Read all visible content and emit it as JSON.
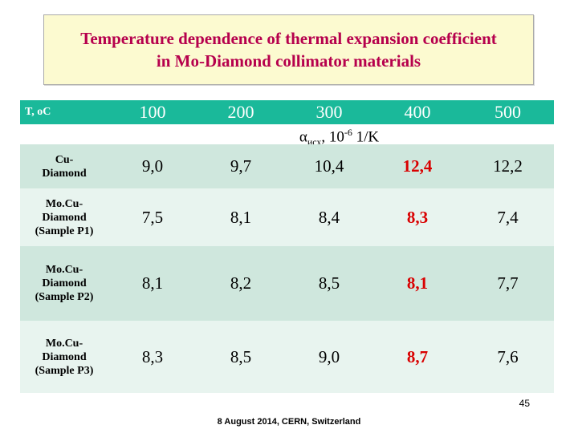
{
  "title": {
    "line1": "Temperature dependence of thermal expansion coefficient",
    "line2": "in Mo-Diamond collimator materials"
  },
  "table": {
    "header_label": "T, oC",
    "temperatures": [
      "100",
      "200",
      "300",
      "400",
      "500"
    ],
    "coefficient_label": {
      "alpha": "α",
      "subscript": "исх",
      "base": ", 10",
      "exponent": "-6",
      "unit": " 1/K"
    },
    "rows": [
      {
        "label_lines": [
          "Cu-",
          "Diamond"
        ],
        "values": [
          "9,0",
          "9,7",
          "10,4",
          "12,4",
          "12,2"
        ]
      },
      {
        "label_lines": [
          "Mo.Cu-",
          "Diamond",
          "(Sample P1)"
        ],
        "values": [
          "7,5",
          "8,1",
          "8,4",
          "8,3",
          "7,4"
        ]
      },
      {
        "label_lines": [
          "Mo.Cu-",
          "Diamond",
          "(Sample P2)"
        ],
        "values": [
          "8,1",
          "8,2",
          "8,5",
          "8,1",
          "7,7"
        ]
      },
      {
        "label_lines": [
          "Mo.Cu-",
          "Diamond",
          "(Sample P3)"
        ],
        "values": [
          "8,3",
          "8,5",
          "9,0",
          "8,7",
          "7,6"
        ]
      }
    ],
    "highlight_color": "#d90000"
  },
  "page_number": "45",
  "footer": "8 August 2014, CERN, Switzerland"
}
